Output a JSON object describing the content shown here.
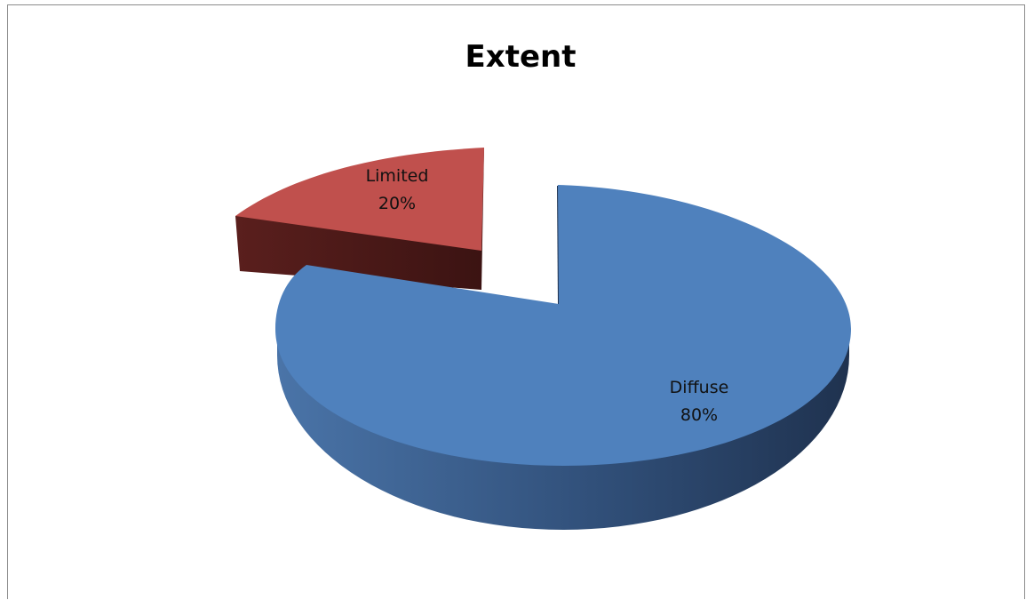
{
  "chart_data": {
    "type": "pie",
    "title": "Extent",
    "categories": [
      "Diffuse",
      "Limited"
    ],
    "values": [
      80,
      20
    ],
    "labels": [
      {
        "category": "Diffuse",
        "percent": "80%"
      },
      {
        "category": "Limited",
        "percent": "20%"
      }
    ],
    "legend": "none",
    "style": "3d-exploded",
    "colors": {
      "Diffuse": {
        "top": "#4f81bd",
        "side_light": "#4a74a8",
        "side_dark": "#1f324f"
      },
      "Limited": {
        "top": "#c0504d",
        "side_light": "#5a1f1d",
        "side_dark": "#3b1312"
      }
    }
  }
}
